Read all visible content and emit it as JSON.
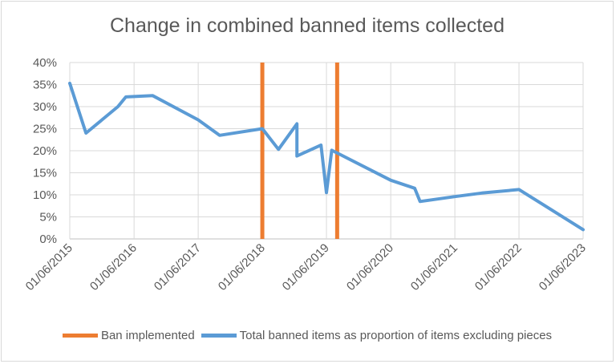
{
  "chart_data": {
    "type": "line",
    "title": "Change in combined banned items collected",
    "xlabel": "",
    "ylabel": "",
    "y_ticks": [
      "0%",
      "5%",
      "10%",
      "15%",
      "20%",
      "25%",
      "30%",
      "35%",
      "40%"
    ],
    "ylim": [
      0,
      40
    ],
    "x_ticks": [
      "01/06/2015",
      "01/06/2016",
      "01/06/2017",
      "01/06/2018",
      "01/06/2019",
      "01/06/2020",
      "01/06/2021",
      "01/06/2022",
      "01/06/2023"
    ],
    "xlim": [
      "01/06/2015",
      "01/06/2023"
    ],
    "grid": "vertical and horizontal",
    "series": [
      {
        "name": "Total banned items as proportion of items excluding pieces",
        "color": "#5b9bd5",
        "points": [
          [
            "01/06/2015",
            35.3
          ],
          [
            "01/09/2015",
            24.0
          ],
          [
            "01/12/2015",
            27.0
          ],
          [
            "01/03/2016",
            30.0
          ],
          [
            "15/04/2016",
            32.2
          ],
          [
            "15/09/2016",
            32.5
          ],
          [
            "01/06/2017",
            27.0
          ],
          [
            "01/10/2017",
            23.5
          ],
          [
            "01/06/2018",
            25.0
          ],
          [
            "01/09/2018",
            20.3
          ],
          [
            "15/12/2018",
            26.1
          ],
          [
            "15/12/2018",
            18.8
          ],
          [
            "01/05/2019",
            21.3
          ],
          [
            "01/06/2019",
            10.5
          ],
          [
            "01/07/2019",
            20.1
          ],
          [
            "01/06/2020",
            13.3
          ],
          [
            "15/10/2020",
            11.5
          ],
          [
            "15/11/2020",
            8.5
          ],
          [
            "01/06/2021",
            9.6
          ],
          [
            "01/11/2021",
            10.4
          ],
          [
            "01/06/2022",
            11.2
          ],
          [
            "01/06/2023",
            2.1
          ]
        ]
      },
      {
        "name": "Ban implemented",
        "color": "#ed7d31",
        "type": "vertical-line",
        "dates": [
          "01/06/2018",
          "01/08/2019"
        ]
      }
    ],
    "legend_position": "bottom"
  }
}
